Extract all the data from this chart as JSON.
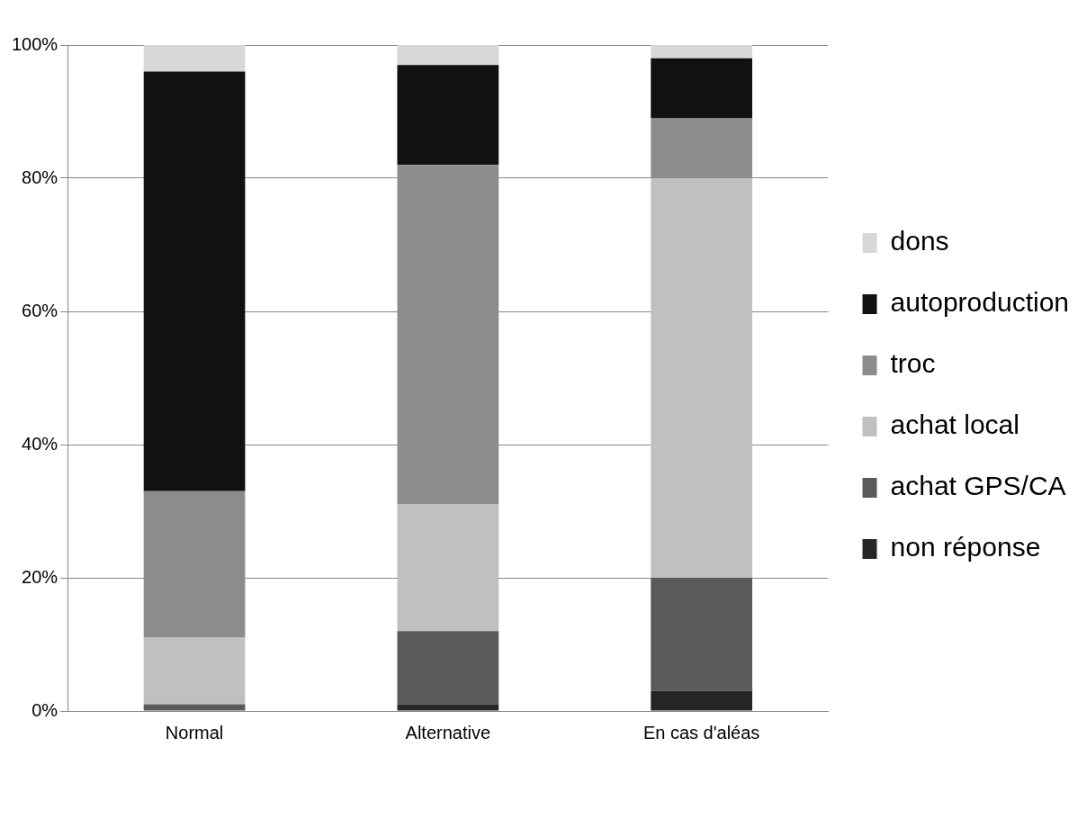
{
  "chart_data": {
    "type": "bar",
    "stacked": true,
    "categories": [
      "Normal",
      "Alternative",
      "En cas d'aléas"
    ],
    "series": [
      {
        "name": "non réponse",
        "color": "#262626",
        "values": [
          0,
          1,
          3
        ]
      },
      {
        "name": "achat GPS/CA",
        "color": "#5a5a5a",
        "values": [
          1,
          11,
          17
        ]
      },
      {
        "name": "achat local",
        "color": "#c0c0c0",
        "values": [
          10,
          19,
          60
        ]
      },
      {
        "name": "troc",
        "color": "#8c8c8c",
        "values": [
          22,
          51,
          9
        ]
      },
      {
        "name": "autoproduction",
        "color": "#111111",
        "values": [
          63,
          15,
          9
        ]
      },
      {
        "name": "dons",
        "color": "#d8d8d8",
        "values": [
          4,
          3,
          2
        ]
      }
    ],
    "ylim": [
      0,
      100
    ],
    "yticks": [
      {
        "value": 0,
        "label": "0%"
      },
      {
        "value": 20,
        "label": "20%"
      },
      {
        "value": 40,
        "label": "40%"
      },
      {
        "value": 60,
        "label": "60%"
      },
      {
        "value": 80,
        "label": "80%"
      },
      {
        "value": 100,
        "label": "100%"
      }
    ],
    "grid": "y",
    "legend": "right"
  }
}
